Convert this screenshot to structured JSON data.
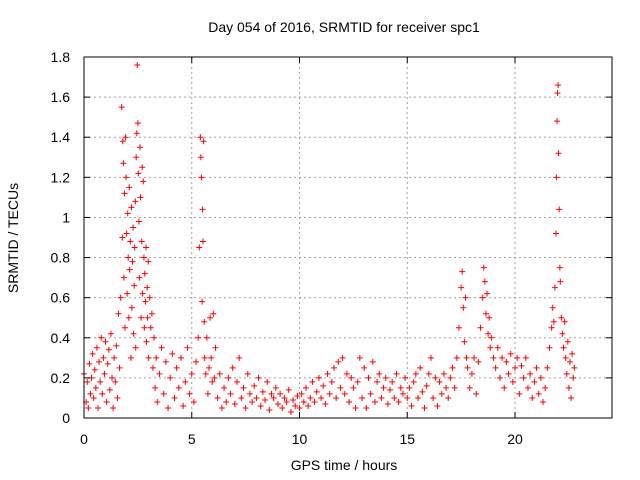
{
  "chart_data": {
    "type": "scatter",
    "title": "Day 054 of 2016, SRMTID for receiver spc1",
    "xlabel": "GPS time / hours",
    "ylabel": "SRMTID / TECUs",
    "xlim": [
      0,
      24.5
    ],
    "ylim": [
      0,
      1.8
    ],
    "xticks": [
      0,
      5,
      10,
      15,
      20
    ],
    "xtick_labels": [
      "0",
      "5",
      "10",
      "15",
      "20"
    ],
    "yticks": [
      0,
      0.2,
      0.4,
      0.6,
      0.8,
      1.0,
      1.2,
      1.4,
      1.6,
      1.8
    ],
    "ytick_labels": [
      "0",
      "0.2",
      "0.4",
      "0.6",
      "0.8",
      "1",
      "1.2",
      "1.4",
      "1.6",
      "1.8"
    ],
    "grid": true,
    "marker": "+",
    "marker_color": "#ff0000",
    "series": [
      {
        "name": "spc1",
        "points": [
          [
            0.0,
            0.22
          ],
          [
            0.1,
            0.08
          ],
          [
            0.15,
            0.18
          ],
          [
            0.2,
            0.05
          ],
          [
            0.25,
            0.27
          ],
          [
            0.3,
            0.12
          ],
          [
            0.35,
            0.2
          ],
          [
            0.4,
            0.32
          ],
          [
            0.45,
            0.1
          ],
          [
            0.5,
            0.24
          ],
          [
            0.55,
            0.15
          ],
          [
            0.6,
            0.35
          ],
          [
            0.65,
            0.05
          ],
          [
            0.7,
            0.28
          ],
          [
            0.75,
            0.18
          ],
          [
            0.8,
            0.4
          ],
          [
            0.85,
            0.12
          ],
          [
            0.9,
            0.3
          ],
          [
            0.95,
            0.22
          ],
          [
            1.0,
            0.38
          ],
          [
            1.05,
            0.08
          ],
          [
            1.1,
            0.27
          ],
          [
            1.15,
            0.34
          ],
          [
            1.2,
            0.14
          ],
          [
            1.25,
            0.42
          ],
          [
            1.3,
            0.2
          ],
          [
            1.35,
            0.05
          ],
          [
            1.4,
            0.3
          ],
          [
            1.45,
            0.18
          ],
          [
            1.5,
            0.36
          ],
          [
            1.55,
            0.1
          ],
          [
            1.6,
            0.52
          ],
          [
            1.65,
            0.25
          ],
          [
            1.7,
            0.6
          ],
          [
            1.75,
            1.55
          ],
          [
            1.78,
            0.9
          ],
          [
            1.8,
            1.38
          ],
          [
            1.83,
            1.27
          ],
          [
            1.85,
            0.7
          ],
          [
            1.88,
            1.12
          ],
          [
            1.9,
            0.45
          ],
          [
            1.93,
            1.4
          ],
          [
            1.95,
            1.2
          ],
          [
            1.98,
            0.92
          ],
          [
            2.0,
            0.62
          ],
          [
            2.03,
            1.02
          ],
          [
            2.05,
            0.8
          ],
          [
            2.08,
            0.5
          ],
          [
            2.1,
            1.15
          ],
          [
            2.12,
            0.74
          ],
          [
            2.15,
            0.88
          ],
          [
            2.18,
            0.3
          ],
          [
            2.2,
            1.05
          ],
          [
            2.22,
            0.55
          ],
          [
            2.25,
            0.78
          ],
          [
            2.28,
            0.95
          ],
          [
            2.3,
            0.42
          ],
          [
            2.33,
            0.66
          ],
          [
            2.35,
            0.85
          ],
          [
            2.38,
            1.08
          ],
          [
            2.4,
            0.35
          ],
          [
            2.42,
            1.3
          ],
          [
            2.45,
            1.42
          ],
          [
            2.47,
            1.76
          ],
          [
            2.5,
            1.47
          ],
          [
            2.52,
            1.22
          ],
          [
            2.55,
            0.98
          ],
          [
            2.57,
            0.7
          ],
          [
            2.6,
            1.35
          ],
          [
            2.62,
            1.1
          ],
          [
            2.65,
            0.5
          ],
          [
            2.68,
            0.88
          ],
          [
            2.7,
            1.25
          ],
          [
            2.72,
            0.62
          ],
          [
            2.75,
            1.18
          ],
          [
            2.78,
            0.8
          ],
          [
            2.8,
            0.45
          ],
          [
            2.82,
            0.72
          ],
          [
            2.85,
            0.58
          ],
          [
            2.88,
            0.85
          ],
          [
            2.9,
            0.38
          ],
          [
            2.93,
            0.65
          ],
          [
            2.95,
            0.5
          ],
          [
            2.98,
            0.78
          ],
          [
            3.0,
            0.3
          ],
          [
            3.05,
            0.6
          ],
          [
            3.1,
            0.45
          ],
          [
            3.15,
            0.52
          ],
          [
            3.2,
            0.25
          ],
          [
            3.25,
            0.4
          ],
          [
            3.3,
            0.15
          ],
          [
            3.35,
            0.3
          ],
          [
            3.4,
            0.08
          ],
          [
            3.5,
            0.22
          ],
          [
            3.6,
            0.35
          ],
          [
            3.7,
            0.12
          ],
          [
            3.8,
            0.28
          ],
          [
            3.9,
            0.05
          ],
          [
            4.0,
            0.2
          ],
          [
            4.1,
            0.32
          ],
          [
            4.2,
            0.1
          ],
          [
            4.3,
            0.25
          ],
          [
            4.4,
            0.15
          ],
          [
            4.5,
            0.3
          ],
          [
            4.6,
            0.06
          ],
          [
            4.7,
            0.18
          ],
          [
            4.8,
            0.35
          ],
          [
            4.9,
            0.12
          ],
          [
            5.0,
            0.22
          ],
          [
            5.1,
            0.08
          ],
          [
            5.2,
            0.28
          ],
          [
            5.3,
            0.4
          ],
          [
            5.35,
            0.85
          ],
          [
            5.4,
            1.4
          ],
          [
            5.42,
            1.3
          ],
          [
            5.45,
            1.2
          ],
          [
            5.48,
            0.58
          ],
          [
            5.5,
            1.04
          ],
          [
            5.52,
            0.88
          ],
          [
            5.55,
            1.38
          ],
          [
            5.58,
            0.48
          ],
          [
            5.6,
            0.3
          ],
          [
            5.65,
            0.22
          ],
          [
            5.7,
            0.4
          ],
          [
            5.75,
            0.12
          ],
          [
            5.8,
            0.25
          ],
          [
            5.85,
            0.5
          ],
          [
            5.9,
            0.3
          ],
          [
            5.95,
            0.18
          ],
          [
            6.0,
            0.52
          ],
          [
            6.05,
            0.2
          ],
          [
            6.1,
            0.35
          ],
          [
            6.2,
            0.1
          ],
          [
            6.3,
            0.22
          ],
          [
            6.4,
            0.05
          ],
          [
            6.5,
            0.15
          ],
          [
            6.6,
            0.08
          ],
          [
            6.7,
            0.2
          ],
          [
            6.8,
            0.12
          ],
          [
            6.9,
            0.25
          ],
          [
            7.0,
            0.07
          ],
          [
            7.1,
            0.18
          ],
          [
            7.2,
            0.3
          ],
          [
            7.3,
            0.1
          ],
          [
            7.4,
            0.15
          ],
          [
            7.5,
            0.05
          ],
          [
            7.6,
            0.22
          ],
          [
            7.7,
            0.12
          ],
          [
            7.8,
            0.08
          ],
          [
            7.9,
            0.16
          ],
          [
            8.0,
            0.1
          ],
          [
            8.1,
            0.2
          ],
          [
            8.2,
            0.06
          ],
          [
            8.3,
            0.13
          ],
          [
            8.4,
            0.09
          ],
          [
            8.5,
            0.18
          ],
          [
            8.6,
            0.04
          ],
          [
            8.7,
            0.12
          ],
          [
            8.8,
            0.1
          ],
          [
            8.9,
            0.15
          ],
          [
            9.0,
            0.07
          ],
          [
            9.1,
            0.12
          ],
          [
            9.2,
            0.05
          ],
          [
            9.3,
            0.1
          ],
          [
            9.4,
            0.08
          ],
          [
            9.5,
            0.14
          ],
          [
            9.6,
            0.03
          ],
          [
            9.7,
            0.09
          ],
          [
            9.8,
            0.06
          ],
          [
            9.9,
            0.11
          ],
          [
            10.0,
            0.05
          ],
          [
            10.1,
            0.12
          ],
          [
            10.2,
            0.08
          ],
          [
            10.3,
            0.15
          ],
          [
            10.4,
            0.06
          ],
          [
            10.5,
            0.1
          ],
          [
            10.6,
            0.18
          ],
          [
            10.7,
            0.08
          ],
          [
            10.8,
            0.13
          ],
          [
            10.9,
            0.2
          ],
          [
            11.0,
            0.1
          ],
          [
            11.1,
            0.16
          ],
          [
            11.2,
            0.07
          ],
          [
            11.3,
            0.22
          ],
          [
            11.4,
            0.12
          ],
          [
            11.5,
            0.18
          ],
          [
            11.6,
            0.25
          ],
          [
            11.7,
            0.1
          ],
          [
            11.8,
            0.28
          ],
          [
            11.9,
            0.15
          ],
          [
            12.0,
            0.3
          ],
          [
            12.1,
            0.12
          ],
          [
            12.2,
            0.22
          ],
          [
            12.3,
            0.08
          ],
          [
            12.4,
            0.2
          ],
          [
            12.5,
            0.15
          ],
          [
            12.6,
            0.05
          ],
          [
            12.7,
            0.18
          ],
          [
            12.8,
            0.3
          ],
          [
            12.9,
            0.1
          ],
          [
            13.0,
            0.25
          ],
          [
            13.1,
            0.05
          ],
          [
            13.2,
            0.2
          ],
          [
            13.3,
            0.12
          ],
          [
            13.4,
            0.28
          ],
          [
            13.5,
            0.08
          ],
          [
            13.6,
            0.18
          ],
          [
            13.7,
            0.22
          ],
          [
            13.8,
            0.1
          ],
          [
            13.9,
            0.15
          ],
          [
            14.0,
            0.2
          ],
          [
            14.1,
            0.07
          ],
          [
            14.2,
            0.14
          ],
          [
            14.3,
            0.18
          ],
          [
            14.4,
            0.1
          ],
          [
            14.5,
            0.22
          ],
          [
            14.6,
            0.08
          ],
          [
            14.7,
            0.15
          ],
          [
            14.8,
            0.12
          ],
          [
            14.9,
            0.2
          ],
          [
            15.0,
            0.1
          ],
          [
            15.1,
            0.15
          ],
          [
            15.2,
            0.06
          ],
          [
            15.3,
            0.18
          ],
          [
            15.4,
            0.22
          ],
          [
            15.5,
            0.1
          ],
          [
            15.6,
            0.25
          ],
          [
            15.7,
            0.13
          ],
          [
            15.8,
            0.05
          ],
          [
            15.9,
            0.16
          ],
          [
            16.0,
            0.22
          ],
          [
            16.1,
            0.3
          ],
          [
            16.2,
            0.1
          ],
          [
            16.3,
            0.2
          ],
          [
            16.4,
            0.06
          ],
          [
            16.5,
            0.18
          ],
          [
            16.6,
            0.12
          ],
          [
            16.7,
            0.22
          ],
          [
            16.8,
            0.15
          ],
          [
            16.9,
            0.1
          ],
          [
            17.0,
            0.2
          ],
          [
            17.1,
            0.25
          ],
          [
            17.2,
            0.15
          ],
          [
            17.3,
            0.3
          ],
          [
            17.4,
            0.45
          ],
          [
            17.5,
            0.65
          ],
          [
            17.55,
            0.73
          ],
          [
            17.6,
            0.55
          ],
          [
            17.65,
            0.38
          ],
          [
            17.7,
            0.6
          ],
          [
            17.75,
            0.3
          ],
          [
            17.8,
            0.25
          ],
          [
            17.9,
            0.15
          ],
          [
            18.0,
            0.22
          ],
          [
            18.1,
            0.3
          ],
          [
            18.2,
            0.12
          ],
          [
            18.3,
            0.28
          ],
          [
            18.4,
            0.45
          ],
          [
            18.5,
            0.6
          ],
          [
            18.55,
            0.75
          ],
          [
            18.6,
            0.68
          ],
          [
            18.65,
            0.52
          ],
          [
            18.7,
            0.62
          ],
          [
            18.75,
            0.42
          ],
          [
            18.8,
            0.5
          ],
          [
            18.85,
            0.35
          ],
          [
            18.9,
            0.4
          ],
          [
            19.0,
            0.3
          ],
          [
            19.1,
            0.25
          ],
          [
            19.2,
            0.35
          ],
          [
            19.3,
            0.2
          ],
          [
            19.4,
            0.3
          ],
          [
            19.5,
            0.15
          ],
          [
            19.6,
            0.28
          ],
          [
            19.7,
            0.22
          ],
          [
            19.8,
            0.32
          ],
          [
            19.9,
            0.18
          ],
          [
            20.0,
            0.25
          ],
          [
            20.1,
            0.3
          ],
          [
            20.2,
            0.12
          ],
          [
            20.3,
            0.26
          ],
          [
            20.4,
            0.2
          ],
          [
            20.5,
            0.3
          ],
          [
            20.6,
            0.15
          ],
          [
            20.7,
            0.22
          ],
          [
            20.8,
            0.1
          ],
          [
            20.9,
            0.18
          ],
          [
            21.0,
            0.25
          ],
          [
            21.1,
            0.12
          ],
          [
            21.2,
            0.2
          ],
          [
            21.3,
            0.08
          ],
          [
            21.4,
            0.15
          ],
          [
            21.5,
            0.25
          ],
          [
            21.6,
            0.35
          ],
          [
            21.7,
            0.45
          ],
          [
            21.75,
            0.55
          ],
          [
            21.8,
            0.48
          ],
          [
            21.85,
            0.65
          ],
          [
            21.9,
            0.92
          ],
          [
            21.92,
            1.2
          ],
          [
            21.95,
            1.48
          ],
          [
            21.97,
            1.62
          ],
          [
            22.0,
            1.66
          ],
          [
            22.02,
            1.32
          ],
          [
            22.05,
            1.04
          ],
          [
            22.08,
            0.75
          ],
          [
            22.1,
            0.68
          ],
          [
            22.15,
            0.5
          ],
          [
            22.2,
            0.42
          ],
          [
            22.25,
            0.35
          ],
          [
            22.3,
            0.48
          ],
          [
            22.35,
            0.3
          ],
          [
            22.4,
            0.22
          ],
          [
            22.45,
            0.38
          ],
          [
            22.5,
            0.15
          ],
          [
            22.55,
            0.28
          ],
          [
            22.6,
            0.1
          ],
          [
            22.65,
            0.32
          ],
          [
            22.7,
            0.2
          ],
          [
            22.75,
            0.25
          ]
        ]
      }
    ]
  }
}
